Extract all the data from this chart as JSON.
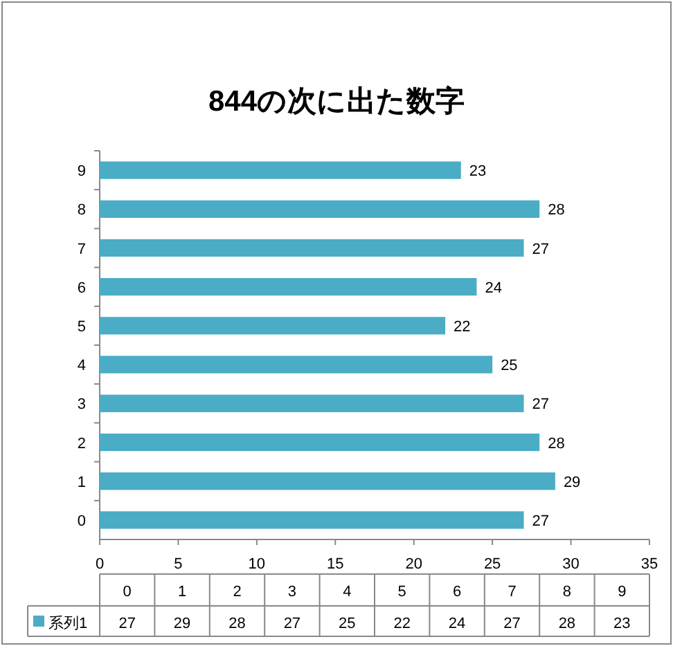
{
  "chart_data": {
    "type": "bar",
    "orientation": "horizontal",
    "title": "844の次に出た数字",
    "categories": [
      "9",
      "8",
      "7",
      "6",
      "5",
      "4",
      "3",
      "2",
      "1",
      "0"
    ],
    "series": [
      {
        "name": "系列1",
        "color": "#4bacc6",
        "values": [
          23,
          28,
          27,
          24,
          22,
          25,
          27,
          28,
          29,
          27
        ]
      }
    ],
    "annotations": [
      "27",
      "29",
      "28",
      "27",
      "25",
      "22",
      "24",
      "27",
      "28",
      "23"
    ],
    "xlim": [
      0,
      35
    ],
    "xticks": [
      0,
      5,
      10,
      15,
      20,
      25,
      30,
      35
    ],
    "data_labels": true,
    "legend": "bottom",
    "grid": false
  }
}
